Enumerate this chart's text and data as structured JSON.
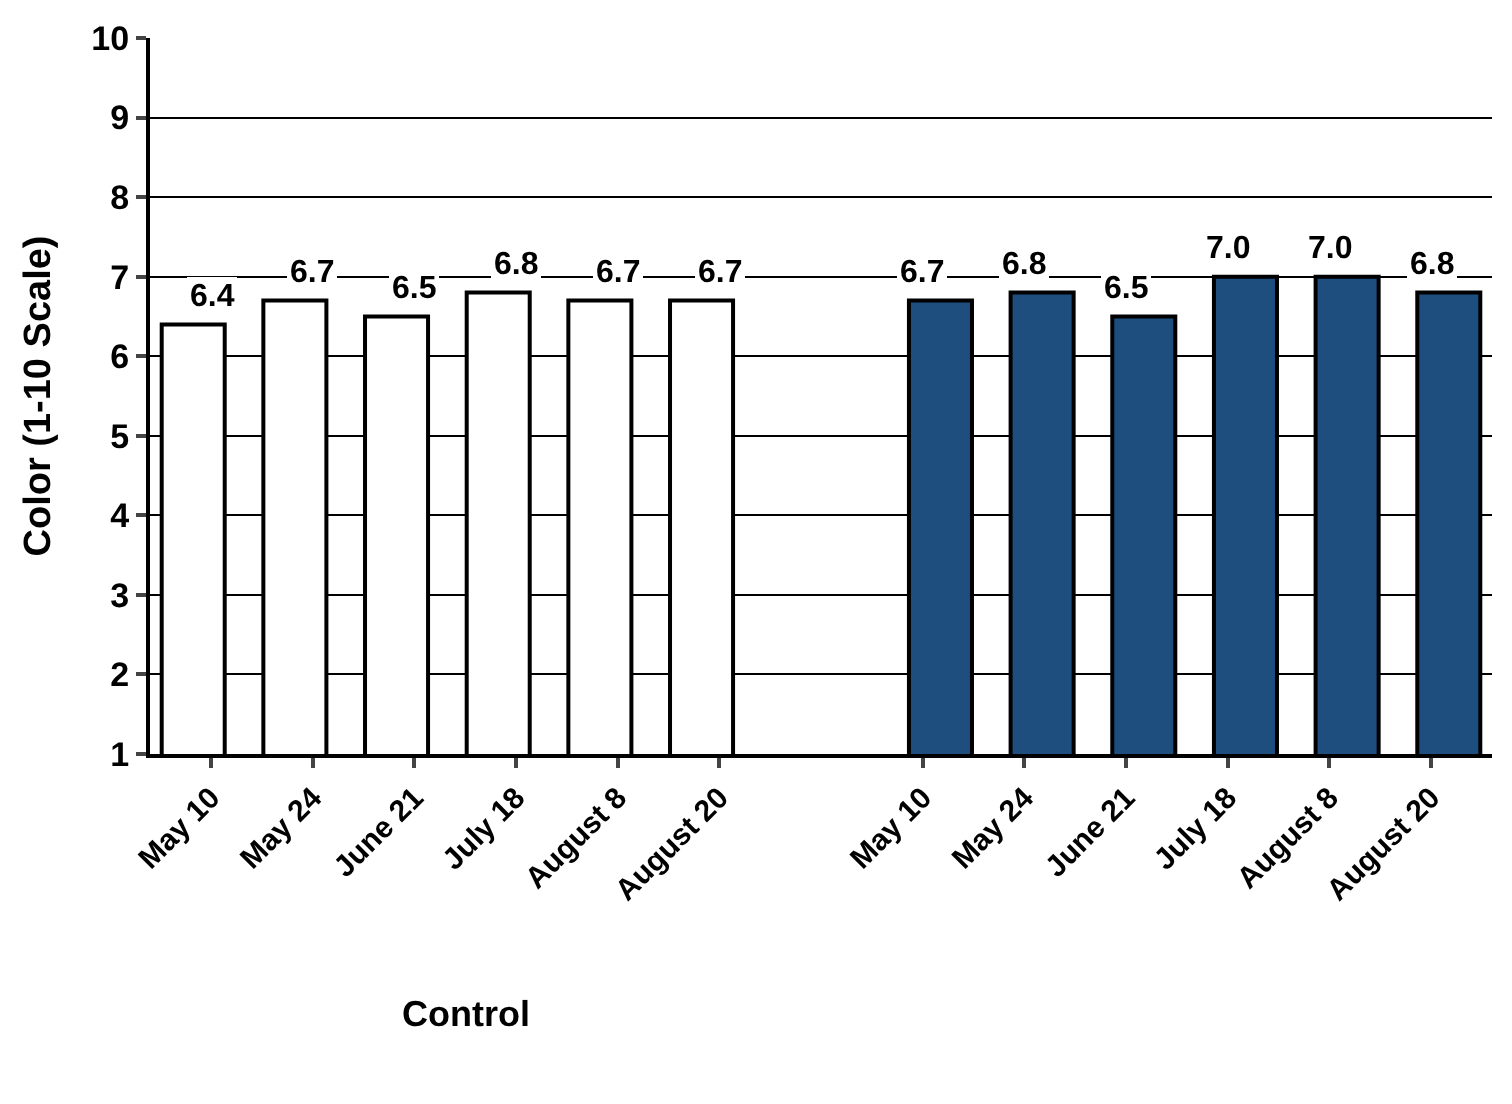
{
  "chart_data": {
    "type": "bar",
    "ylabel": "Color (1-10 Scale)",
    "categories": [
      "May 10",
      "May 24",
      "June 21",
      "July 18",
      "August 8",
      "August 20",
      null,
      "May 10",
      "May 24",
      "June 21",
      "July 18",
      "August 8",
      "August 20"
    ],
    "series": [
      {
        "name": "Control",
        "color": "#ffffff",
        "values": [
          6.4,
          6.7,
          6.5,
          6.8,
          6.7,
          6.7,
          null,
          null,
          null,
          null,
          null,
          null,
          null
        ],
        "value_labels": [
          "6.4",
          "6.7",
          "6.5",
          "6.8",
          "6.7",
          "6.7",
          null,
          null,
          null,
          null,
          null,
          null,
          null
        ]
      },
      {
        "color": "#1d4e7e",
        "values": [
          null,
          null,
          null,
          null,
          null,
          null,
          null,
          6.7,
          6.8,
          6.5,
          7.0,
          7.0,
          6.8
        ],
        "value_labels": [
          null,
          null,
          null,
          null,
          null,
          null,
          null,
          "6.7",
          "6.8",
          "6.5",
          "7.0",
          "7.0",
          "6.8"
        ]
      }
    ],
    "ylim": [
      1,
      10
    ],
    "yticks": [
      1,
      2,
      3,
      4,
      5,
      6,
      7,
      8,
      9,
      10
    ],
    "grid": "y"
  }
}
